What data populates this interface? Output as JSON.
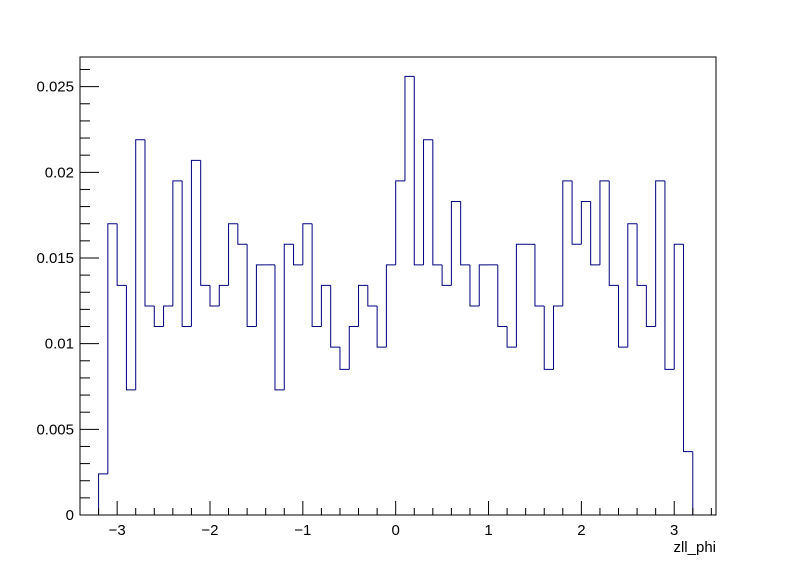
{
  "chart_data": {
    "type": "histogram",
    "title": "",
    "xlabel": "zll_phi",
    "ylabel": "",
    "xlim": [
      -3.4,
      3.45
    ],
    "ylim": [
      0,
      0.02673
    ],
    "x_ticks": [
      -3,
      -2,
      -1,
      0,
      1,
      2,
      3
    ],
    "x_tick_labels": [
      "−3",
      "−2",
      "−1",
      "0",
      "1",
      "2",
      "3"
    ],
    "y_ticks": [
      0,
      0.005,
      0.01,
      0.015,
      0.02,
      0.025
    ],
    "y_tick_labels": [
      "0",
      "0.005",
      "0.01",
      "0.015",
      "0.02",
      "0.025"
    ],
    "grid": false,
    "legend": "none",
    "bins": {
      "start": -3.2,
      "width": 0.1,
      "count": 64
    },
    "values": [
      0.0024,
      0.017,
      0.0134,
      0.0073,
      0.0219,
      0.0122,
      0.011,
      0.0122,
      0.0195,
      0.011,
      0.0207,
      0.0134,
      0.0122,
      0.0134,
      0.017,
      0.0158,
      0.011,
      0.0146,
      0.0146,
      0.0073,
      0.0158,
      0.0146,
      0.017,
      0.011,
      0.0134,
      0.0098,
      0.0085,
      0.011,
      0.0134,
      0.0122,
      0.0098,
      0.0146,
      0.0195,
      0.0256,
      0.0146,
      0.0219,
      0.0146,
      0.0134,
      0.0183,
      0.0146,
      0.0122,
      0.0146,
      0.0146,
      0.011,
      0.0098,
      0.0158,
      0.0158,
      0.0122,
      0.0085,
      0.0122,
      0.0195,
      0.0158,
      0.0183,
      0.0146,
      0.0195,
      0.0134,
      0.0098,
      0.017,
      0.0134,
      0.011,
      0.0195,
      0.0085,
      0.0158,
      0.0037
    ],
    "line_color": "#000080",
    "frame_color": "#000000"
  }
}
